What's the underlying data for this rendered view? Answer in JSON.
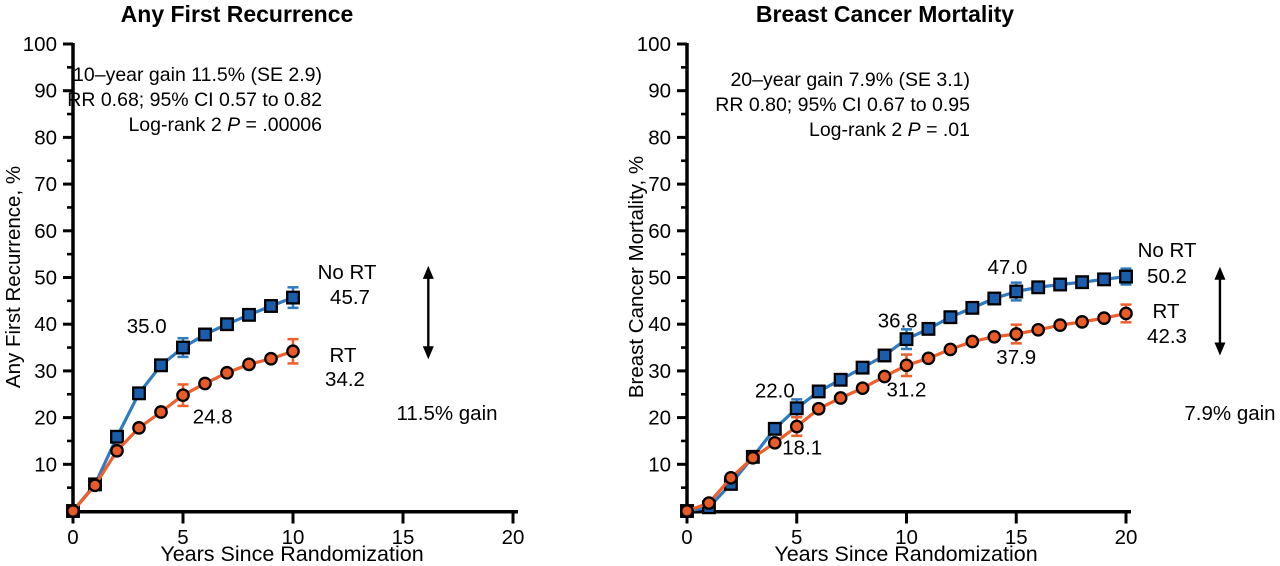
{
  "figure": {
    "background": "#ffffff",
    "axis_color": "#000000",
    "text_color": "#000000"
  },
  "chart_data": [
    {
      "type": "line",
      "title": "Any First Recurrence",
      "ylabel": "Any First Recurrence, %",
      "xlabel": "Years Since Randomization",
      "xlim": [
        0,
        20
      ],
      "ylim": [
        0,
        100
      ],
      "x_ticks": [
        0,
        5,
        10,
        15,
        20
      ],
      "y_ticks": [
        10,
        20,
        30,
        40,
        50,
        60,
        70,
        80,
        90,
        100
      ],
      "y_minor_ticks": [
        5,
        15,
        25,
        35,
        45,
        55,
        65,
        75,
        85,
        95
      ],
      "grid": false,
      "legend_position": "right-of-curves",
      "annotation": {
        "line1": "10–year gain 11.5% (SE 2.9)",
        "line2": "RR 0.68; 95% CI 0.57 to 0.82",
        "logrank": {
          "pre": "Log-rank 2 ",
          "italic": "P",
          "post": " = .00006"
        }
      },
      "series": [
        {
          "name": "No RT",
          "marker": "square",
          "line_color": "#2E7CBF",
          "fill_color": "#1A5DAD",
          "x": [
            0,
            1,
            2,
            3,
            4,
            5,
            6,
            7,
            8,
            9,
            10
          ],
          "values": [
            0,
            5.7,
            15.9,
            25.2,
            31.2,
            35.0,
            37.8,
            40.0,
            42.0,
            43.9,
            45.7
          ],
          "error_bars": [
            {
              "x": 5,
              "y": 35.0,
              "e": 2.0
            },
            {
              "x": 10,
              "y": 45.7,
              "e": 2.2
            }
          ]
        },
        {
          "name": "RT",
          "marker": "circle",
          "line_color": "#EE5F2C",
          "fill_color": "#E95C28",
          "x": [
            0,
            1,
            2,
            3,
            4,
            5,
            6,
            7,
            8,
            9,
            10
          ],
          "values": [
            0,
            5.5,
            12.9,
            17.8,
            21.2,
            24.8,
            27.3,
            29.6,
            31.4,
            32.6,
            34.2
          ],
          "error_bars": [
            {
              "x": 5,
              "y": 24.8,
              "e": 2.3
            },
            {
              "x": 10,
              "y": 34.2,
              "e": 2.6
            }
          ]
        }
      ],
      "point_labels": [
        {
          "text": "35.0",
          "x": 3.35,
          "y": 39.6
        },
        {
          "text": "24.8",
          "x": 6.35,
          "y": 20.2
        }
      ],
      "side_labels": {
        "no_rt_name": "No RT",
        "no_rt_value": "45.7",
        "rt_name": "RT",
        "rt_value": "34.2",
        "gain": "11.5% gain"
      },
      "arrow": {
        "x": 16.15,
        "top": 52.5,
        "bottom": 32.5
      }
    },
    {
      "type": "line",
      "title": "Breast Cancer Mortality",
      "ylabel": "Breast Cancer Mortality, %",
      "xlabel": "Years Since Randomization",
      "xlim": [
        0,
        20
      ],
      "ylim": [
        0,
        100
      ],
      "x_ticks": [
        0,
        5,
        10,
        15,
        20
      ],
      "y_ticks": [
        10,
        20,
        30,
        40,
        50,
        60,
        70,
        80,
        90,
        100
      ],
      "y_minor_ticks": [
        5,
        15,
        25,
        35,
        45,
        55,
        65,
        75,
        85,
        95
      ],
      "grid": false,
      "legend_position": "right-of-curves",
      "annotation": {
        "line1": "20–year gain 7.9% (SE 3.1)",
        "line2": "RR 0.80; 95% CI 0.67 to 0.95",
        "logrank": {
          "pre": "Log-rank 2 ",
          "italic": "P",
          "post": " = .01"
        }
      },
      "series": [
        {
          "name": "No RT",
          "marker": "square",
          "line_color": "#2E7CBF",
          "fill_color": "#1A5DAD",
          "x": [
            0,
            1,
            2,
            3,
            4,
            5,
            6,
            7,
            8,
            9,
            10,
            11,
            12,
            13,
            14,
            15,
            16,
            17,
            18,
            19,
            20
          ],
          "values": [
            0,
            0.8,
            5.8,
            11.6,
            17.6,
            22.0,
            25.6,
            28.1,
            30.7,
            33.3,
            36.8,
            39.0,
            41.5,
            43.5,
            45.5,
            47.0,
            47.9,
            48.5,
            49.0,
            49.6,
            50.2
          ],
          "error_bars": [
            {
              "x": 5,
              "y": 22.0,
              "e": 1.9
            },
            {
              "x": 10,
              "y": 36.8,
              "e": 2.1
            },
            {
              "x": 15,
              "y": 47.0,
              "e": 1.9
            },
            {
              "x": 20,
              "y": 50.2,
              "e": 1.7
            }
          ]
        },
        {
          "name": "RT",
          "marker": "circle",
          "line_color": "#EE5F2C",
          "fill_color": "#E95C28",
          "x": [
            0,
            1,
            2,
            3,
            4,
            5,
            6,
            7,
            8,
            9,
            10,
            11,
            12,
            13,
            14,
            15,
            16,
            17,
            18,
            19,
            20
          ],
          "values": [
            0,
            1.7,
            7.1,
            11.4,
            14.6,
            18.1,
            21.9,
            24.2,
            26.3,
            28.8,
            31.2,
            32.7,
            34.6,
            36.3,
            37.3,
            37.9,
            38.8,
            39.8,
            40.5,
            41.3,
            42.3
          ],
          "error_bars": [
            {
              "x": 5,
              "y": 18.1,
              "e": 2.0
            },
            {
              "x": 10,
              "y": 31.2,
              "e": 2.3
            },
            {
              "x": 15,
              "y": 37.9,
              "e": 2.0
            },
            {
              "x": 20,
              "y": 42.3,
              "e": 1.9
            }
          ]
        }
      ],
      "point_labels": [
        {
          "text": "22.0",
          "x": 4.0,
          "y": 25.8
        },
        {
          "text": "18.1",
          "x": 5.25,
          "y": 13.6
        },
        {
          "text": "36.8",
          "x": 9.6,
          "y": 40.8
        },
        {
          "text": "31.2",
          "x": 10.0,
          "y": 26.0
        },
        {
          "text": "47.0",
          "x": 14.6,
          "y": 52.2
        },
        {
          "text": "37.9",
          "x": 15.0,
          "y": 33.0
        }
      ],
      "side_labels": {
        "no_rt_name": "No RT",
        "no_rt_value": "50.2",
        "rt_name": "RT",
        "rt_value": "42.3",
        "gain": "7.9% gain"
      },
      "arrow": {
        "x": 24.28,
        "top": 52.3,
        "bottom": 33.3
      }
    }
  ]
}
